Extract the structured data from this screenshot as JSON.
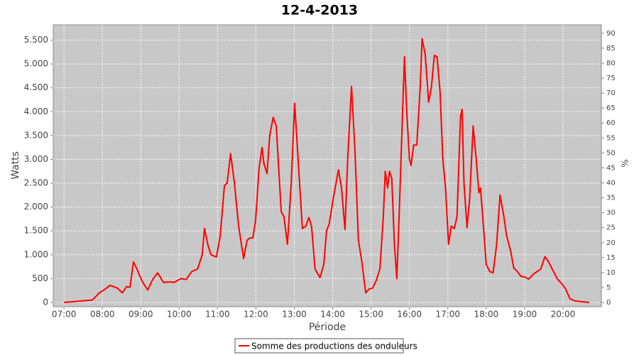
{
  "chart_data": {
    "type": "line",
    "title": "12-4-2013",
    "xlabel": "Période",
    "ylabel": "Watts",
    "y2label": "%",
    "grid": true,
    "legend": "bottom",
    "xlim": [
      6.72,
      21.0
    ],
    "xticks": [
      {
        "value": 7,
        "label": "07:00"
      },
      {
        "value": 8,
        "label": "08:00"
      },
      {
        "value": 9,
        "label": "09:00"
      },
      {
        "value": 10,
        "label": "10:00"
      },
      {
        "value": 11,
        "label": "11:00"
      },
      {
        "value": 12,
        "label": "12:00"
      },
      {
        "value": 13,
        "label": "13:00"
      },
      {
        "value": 14,
        "label": "14:00"
      },
      {
        "value": 15,
        "label": "15:00"
      },
      {
        "value": 16,
        "label": "16:00"
      },
      {
        "value": 17,
        "label": "17:00"
      },
      {
        "value": 18,
        "label": "18:00"
      },
      {
        "value": 19,
        "label": "19:00"
      },
      {
        "value": 20,
        "label": "20:00"
      }
    ],
    "ylim": [
      -90,
      5820
    ],
    "yticks": [
      0,
      500,
      {
        "value": 1000,
        "label": "1.000"
      },
      {
        "value": 1500,
        "label": "1.500"
      },
      {
        "value": 2000,
        "label": "2.000"
      },
      {
        "value": 2500,
        "label": "2.500"
      },
      {
        "value": 3000,
        "label": "3.000"
      },
      {
        "value": 3500,
        "label": "3.500"
      },
      {
        "value": 4000,
        "label": "4.000"
      },
      {
        "value": 4500,
        "label": "4.500"
      },
      {
        "value": 5000,
        "label": "5.000"
      },
      {
        "value": 5500,
        "label": "5.500"
      }
    ],
    "y2lim": [
      -1.4,
      92.8
    ],
    "y2ticks": [
      0,
      5,
      10,
      15,
      20,
      25,
      30,
      35,
      40,
      45,
      50,
      55,
      60,
      65,
      70,
      75,
      80,
      85,
      90
    ],
    "x": [
      7.0,
      7.74,
      7.92,
      8.11,
      8.2,
      8.39,
      8.52,
      8.63,
      8.72,
      8.81,
      8.9,
      9.03,
      9.18,
      9.31,
      9.44,
      9.59,
      9.77,
      9.87,
      10.05,
      10.18,
      10.33,
      10.48,
      10.6,
      10.66,
      10.75,
      10.83,
      10.97,
      11.07,
      11.18,
      11.25,
      11.34,
      11.44,
      11.55,
      11.68,
      11.77,
      11.84,
      11.92,
      11.99,
      12.08,
      12.16,
      12.21,
      12.29,
      12.36,
      12.45,
      12.53,
      12.58,
      12.66,
      12.73,
      12.82,
      12.92,
      13.01,
      13.1,
      13.21,
      13.3,
      13.38,
      13.45,
      13.54,
      13.67,
      13.77,
      13.84,
      13.91,
      14.02,
      14.15,
      14.23,
      14.32,
      14.39,
      14.49,
      14.58,
      14.67,
      14.76,
      14.86,
      14.95,
      15.04,
      15.13,
      15.23,
      15.32,
      15.37,
      15.43,
      15.48,
      15.54,
      15.61,
      15.67,
      15.74,
      15.82,
      15.87,
      15.93,
      16.0,
      16.04,
      16.11,
      16.19,
      16.28,
      16.33,
      16.41,
      16.5,
      16.57,
      16.65,
      16.72,
      16.8,
      16.87,
      16.94,
      17.02,
      17.09,
      17.17,
      17.24,
      17.33,
      17.37,
      17.42,
      17.5,
      17.57,
      17.66,
      17.74,
      17.81,
      17.85,
      17.91,
      18.0,
      18.09,
      18.18,
      18.27,
      18.36,
      18.46,
      18.53,
      18.63,
      18.72,
      18.81,
      18.9,
      19.01,
      19.11,
      19.24,
      19.42,
      19.53,
      19.61,
      19.72,
      19.85,
      19.98,
      20.07,
      20.18,
      20.31,
      20.68
    ],
    "series": [
      {
        "name": "Somme des productions des onduleurs",
        "color": "#ff0000",
        "values": [
          0,
          50,
          200,
          300,
          360,
          300,
          200,
          330,
          320,
          850,
          700,
          450,
          260,
          480,
          620,
          420,
          430,
          420,
          500,
          480,
          650,
          700,
          1000,
          1550,
          1200,
          1000,
          950,
          1400,
          2450,
          2500,
          3120,
          2500,
          1600,
          920,
          1300,
          1350,
          1350,
          1700,
          2800,
          3250,
          2900,
          2700,
          3500,
          3880,
          3700,
          3000,
          1900,
          1800,
          1220,
          2500,
          4180,
          3000,
          1550,
          1600,
          1780,
          1600,
          700,
          520,
          800,
          1500,
          1650,
          2200,
          2780,
          2400,
          1530,
          3000,
          4530,
          3200,
          1300,
          850,
          200,
          280,
          300,
          450,
          700,
          1800,
          2750,
          2400,
          2750,
          2600,
          1200,
          500,
          2000,
          4000,
          5150,
          4000,
          3000,
          2870,
          3300,
          3300,
          4500,
          5530,
          5200,
          4200,
          4500,
          5180,
          5150,
          4400,
          3000,
          2400,
          1220,
          1600,
          1550,
          1800,
          3900,
          4050,
          2500,
          1570,
          2200,
          3700,
          3000,
          2300,
          2400,
          1800,
          800,
          650,
          620,
          1200,
          2250,
          1800,
          1400,
          1100,
          720,
          650,
          550,
          530,
          490,
          600,
          700,
          960,
          870,
          700,
          500,
          380,
          280,
          80,
          30,
          0
        ]
      }
    ]
  }
}
